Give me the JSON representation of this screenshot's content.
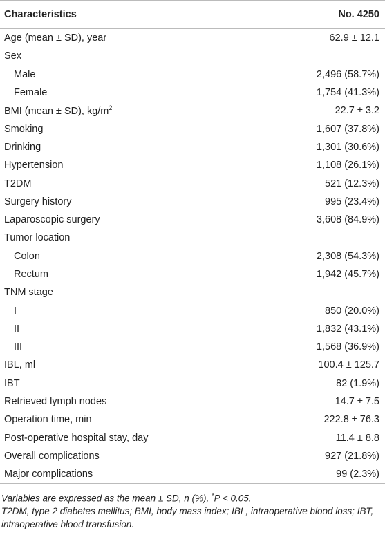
{
  "table": {
    "header": [
      "Characteristics",
      "No. 4250"
    ],
    "rows": [
      {
        "label": "Age (mean ± SD), year",
        "value": "62.9 ± 12.1"
      },
      {
        "label": "Sex",
        "children": [
          {
            "label": "Male",
            "value": "2,496 (58.7%)"
          },
          {
            "label": "Female",
            "value": "1,754 (41.3%)"
          }
        ]
      },
      {
        "label": {
          "text": "BMI (mean ± SD), kg/m",
          "sup": "2"
        },
        "value": "22.7 ± 3.2"
      },
      {
        "label": "Smoking",
        "value": "1,607 (37.8%)"
      },
      {
        "label": "Drinking",
        "value": "1,301 (30.6%)"
      },
      {
        "label": "Hypertension",
        "value": "1,108 (26.1%)"
      },
      {
        "label": "T2DM",
        "value": "521 (12.3%)"
      },
      {
        "label": "Surgery history",
        "value": "995 (23.4%)"
      },
      {
        "label": "Laparoscopic surgery",
        "value": "3,608 (84.9%)"
      },
      {
        "label": "Tumor location",
        "children": [
          {
            "label": "Colon",
            "value": "2,308 (54.3%)"
          },
          {
            "label": "Rectum",
            "value": "1,942 (45.7%)"
          }
        ]
      },
      {
        "label": "TNM stage",
        "children": [
          {
            "label": "I",
            "value": "850 (20.0%)"
          },
          {
            "label": "II",
            "value": "1,832 (43.1%)"
          },
          {
            "label": "III",
            "value": "1,568 (36.9%)"
          }
        ]
      },
      {
        "label": "IBL, ml",
        "value": "100.4 ± 125.7"
      },
      {
        "label": "IBT",
        "value": "82 (1.9%)"
      },
      {
        "label": "Retrieved lymph nodes",
        "value": "14.7 ± 7.5"
      },
      {
        "label": "Operation time, min",
        "value": "222.8 ± 76.3"
      },
      {
        "label": "Post-operative hospital stay, day",
        "value": "11.4 ± 8.8"
      },
      {
        "label": "Overall complications",
        "value": "927 (21.8%)"
      },
      {
        "label": "Major complications",
        "value": "99 (2.3%)"
      }
    ],
    "notes": [
      [
        "Variables are expressed as the mean ± SD, n (%), ",
        {
          "sup": "*"
        },
        "P < 0.05."
      ],
      [
        "T2DM, type 2 diabetes mellitus; BMI, body mass index; IBL, intraoperative blood loss; IBT, intraoperative blood transfusion."
      ]
    ]
  }
}
